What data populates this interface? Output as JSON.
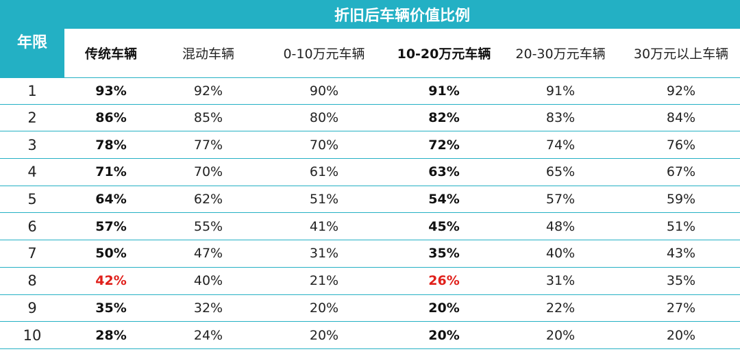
{
  "chart_data": {
    "type": "table",
    "title": "折旧后车辆价值比例",
    "row_header": "年限",
    "columns": [
      "传统车辆",
      "混动车辆",
      "0-10万元车辆",
      "10-20万元车辆",
      "20-30万元车辆",
      "30万元以上车辆"
    ],
    "bold_columns": [
      0,
      3
    ],
    "highlight_color": "#e0201b",
    "header_color": "#23b0c4",
    "rows": [
      {
        "year": "1",
        "values": [
          "93%",
          "92%",
          "90%",
          "91%",
          "91%",
          "92%"
        ],
        "highlight": false
      },
      {
        "year": "2",
        "values": [
          "86%",
          "85%",
          "80%",
          "82%",
          "83%",
          "84%"
        ],
        "highlight": false
      },
      {
        "year": "3",
        "values": [
          "78%",
          "77%",
          "70%",
          "72%",
          "74%",
          "76%"
        ],
        "highlight": false
      },
      {
        "year": "4",
        "values": [
          "71%",
          "70%",
          "61%",
          "63%",
          "65%",
          "67%"
        ],
        "highlight": false
      },
      {
        "year": "5",
        "values": [
          "64%",
          "62%",
          "51%",
          "54%",
          "57%",
          "59%"
        ],
        "highlight": false
      },
      {
        "year": "6",
        "values": [
          "57%",
          "55%",
          "41%",
          "45%",
          "48%",
          "51%"
        ],
        "highlight": false
      },
      {
        "year": "7",
        "values": [
          "50%",
          "47%",
          "31%",
          "35%",
          "40%",
          "43%"
        ],
        "highlight": false
      },
      {
        "year": "8",
        "values": [
          "42%",
          "40%",
          "21%",
          "26%",
          "31%",
          "35%"
        ],
        "highlight": true
      },
      {
        "year": "9",
        "values": [
          "35%",
          "32%",
          "20%",
          "20%",
          "22%",
          "27%"
        ],
        "highlight": false
      },
      {
        "year": "10",
        "values": [
          "28%",
          "24%",
          "20%",
          "20%",
          "20%",
          "20%"
        ],
        "highlight": false
      }
    ]
  }
}
